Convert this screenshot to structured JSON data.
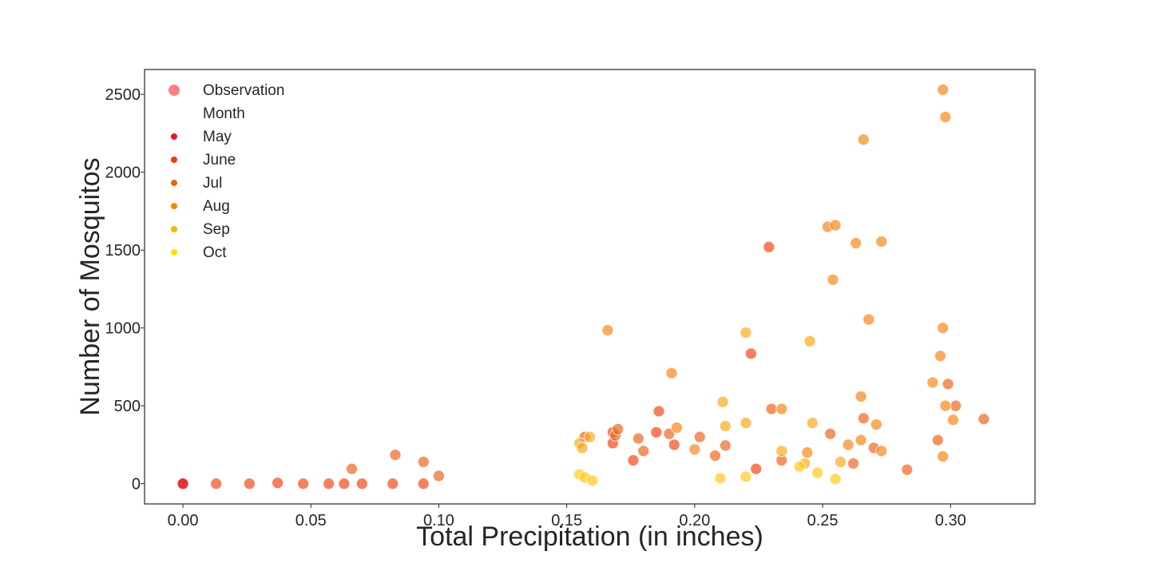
{
  "chart_data": {
    "type": "scatter",
    "title": "",
    "xlabel": "Total Precipitation (in inches)",
    "ylabel": "Number of Mosquitos",
    "xlim": [
      -0.015,
      0.333
    ],
    "ylim": [
      -130,
      2660
    ],
    "xticks": [
      "0.00",
      "0.05",
      "0.10",
      "0.15",
      "0.20",
      "0.25",
      "0.30"
    ],
    "yticks": [
      "0",
      "500",
      "1000",
      "1500",
      "2000",
      "2500"
    ],
    "grid": false,
    "legend": {
      "placement": "top-left",
      "observation_label": "Observation",
      "hue_title": "Month",
      "entries": [
        {
          "label": "May",
          "color": "#e31a1c"
        },
        {
          "label": "June",
          "color": "#f03b00"
        },
        {
          "label": "Jul",
          "color": "#e8630a"
        },
        {
          "label": "Aug",
          "color": "#f08c00"
        },
        {
          "label": "Sep",
          "color": "#f5b800"
        },
        {
          "label": "Oct",
          "color": "#ffe000"
        }
      ]
    },
    "observation_color": "#ff7f7f",
    "series": [
      {
        "name": "May",
        "color": "#e31a1c",
        "x": [
          0.0,
          0.0,
          0.0,
          0.0
        ],
        "y": [
          0,
          0,
          0,
          0
        ]
      },
      {
        "name": "June",
        "color": "#f03b00",
        "x": [
          0.013,
          0.026,
          0.037,
          0.047,
          0.057,
          0.063,
          0.07,
          0.082,
          0.094,
          0.229,
          0.222,
          0.186,
          0.168,
          0.185,
          0.192,
          0.224,
          0.168,
          0.176
        ],
        "y": [
          0,
          0,
          5,
          0,
          0,
          0,
          0,
          0,
          0,
          1520,
          835,
          465,
          330,
          330,
          250,
          95,
          260,
          150
        ]
      },
      {
        "name": "Jul",
        "color": "#e8630a",
        "x": [
          0.066,
          0.083,
          0.094,
          0.1,
          0.157,
          0.169,
          0.17,
          0.178,
          0.19,
          0.202,
          0.212,
          0.23,
          0.234,
          0.253,
          0.262,
          0.266,
          0.27,
          0.283,
          0.295,
          0.299,
          0.302,
          0.313,
          0.18,
          0.208
        ],
        "y": [
          95,
          185,
          140,
          50,
          300,
          310,
          350,
          290,
          320,
          300,
          245,
          480,
          150,
          320,
          130,
          420,
          230,
          90,
          280,
          640,
          500,
          415,
          210,
          180
        ]
      },
      {
        "name": "Aug",
        "color": "#f08c00",
        "x": [
          0.166,
          0.191,
          0.193,
          0.2,
          0.234,
          0.252,
          0.255,
          0.254,
          0.263,
          0.265,
          0.266,
          0.268,
          0.271,
          0.273,
          0.293,
          0.296,
          0.297,
          0.297,
          0.298,
          0.297,
          0.298,
          0.301,
          0.265,
          0.244,
          0.26,
          0.273
        ],
        "y": [
          985,
          710,
          360,
          220,
          480,
          1650,
          1660,
          1310,
          1545,
          560,
          2210,
          1055,
          380,
          1555,
          650,
          820,
          1000,
          2530,
          2355,
          175,
          500,
          410,
          280,
          200,
          250,
          210
        ]
      },
      {
        "name": "Sep",
        "color": "#f5b800",
        "x": [
          0.155,
          0.156,
          0.159,
          0.211,
          0.22,
          0.212,
          0.245,
          0.246,
          0.22,
          0.234,
          0.257,
          0.243
        ],
        "y": [
          260,
          230,
          300,
          525,
          970,
          370,
          915,
          390,
          390,
          210,
          140,
          130
        ]
      },
      {
        "name": "Oct",
        "color": "#ffe000",
        "x": [
          0.155,
          0.157,
          0.16,
          0.21,
          0.22,
          0.241,
          0.248,
          0.255
        ],
        "y": [
          60,
          40,
          20,
          35,
          45,
          110,
          70,
          30
        ]
      }
    ]
  }
}
